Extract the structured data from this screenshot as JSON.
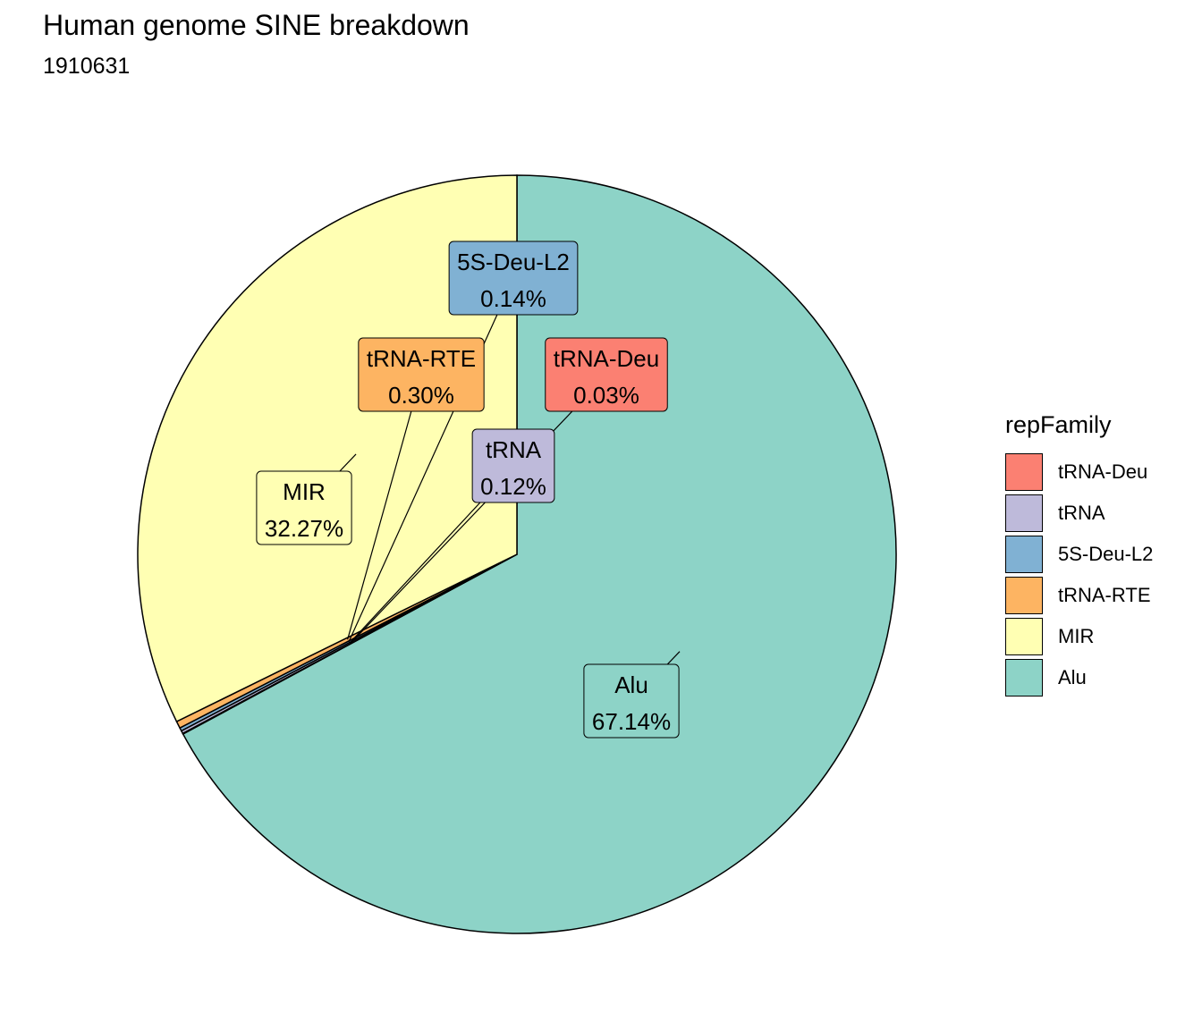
{
  "title": "Human genome SINE breakdown",
  "subtitle": "1910631",
  "chart_data": {
    "type": "pie",
    "legend_title": "repFamily",
    "legend_position": "right",
    "slices": [
      {
        "label": "Alu",
        "value": 67.14,
        "value_label": "67.14%",
        "color": "#8DD3C7"
      },
      {
        "label": "tRNA-Deu",
        "value": 0.03,
        "value_label": "0.03%",
        "color": "#FB8072"
      },
      {
        "label": "tRNA",
        "value": 0.12,
        "value_label": "0.12%",
        "color": "#BEBADA"
      },
      {
        "label": "5S-Deu-L2",
        "value": 0.14,
        "value_label": "0.14%",
        "color": "#80B1D3"
      },
      {
        "label": "tRNA-RTE",
        "value": 0.3,
        "value_label": "0.30%",
        "color": "#FDB462"
      },
      {
        "label": "MIR",
        "value": 32.27,
        "value_label": "32.27%",
        "color": "#FFFFB3"
      }
    ],
    "legend_order": [
      "tRNA-Deu",
      "tRNA",
      "5S-Deu-L2",
      "tRNA-RTE",
      "MIR",
      "Alu"
    ]
  }
}
